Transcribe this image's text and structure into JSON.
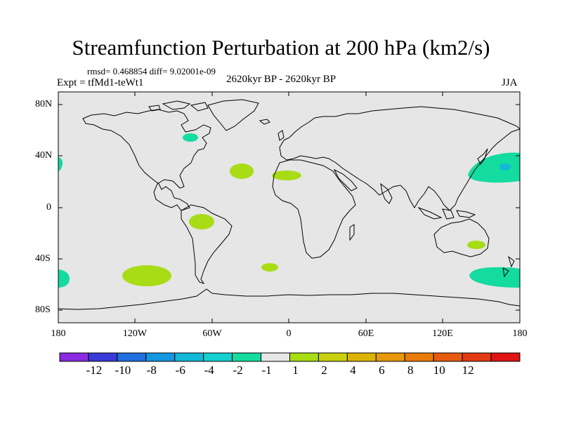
{
  "title": "Streamfunction Perturbation at 200 hPa (km2/s)",
  "stats": "rmsd= 0.468854 diff= 9.02001e-09",
  "experiment": "Expt = tfMd1-teWt1",
  "period": "2620kyr BP - 2620kyr BP",
  "season": "JJA",
  "lat_ticks": [
    "80N",
    "40N",
    "0",
    "40S",
    "80S"
  ],
  "lon_ticks": [
    "180",
    "120W",
    "60W",
    "0",
    "60E",
    "120E",
    "180"
  ],
  "colorbar": {
    "colors": [
      "#8a2be2",
      "#3a3ad8",
      "#1f6fe0",
      "#1596e0",
      "#12b8d8",
      "#14cfcf",
      "#14dba0",
      "#e6e6e6",
      "#a8dc14",
      "#c8d010",
      "#dcb408",
      "#e6980a",
      "#e87a0a",
      "#e65a10",
      "#e23a12",
      "#e01414"
    ],
    "labels": [
      "-12",
      "-10",
      "-8",
      "-6",
      "-4",
      "-2",
      "-1",
      "1",
      "2",
      "4",
      "6",
      "8",
      "10",
      "12"
    ]
  },
  "colors": {
    "ocean": "#e6e6e6",
    "positive_anomaly": "#a8dc14",
    "negative_anomaly": "#14dba0",
    "negative_core": "#12b8d8"
  }
}
